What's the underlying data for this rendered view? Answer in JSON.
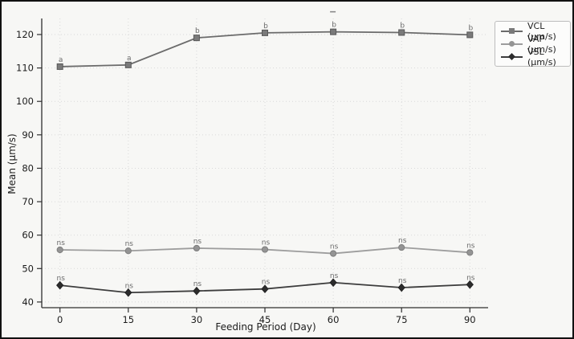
{
  "figure": {
    "background": "#f7f7f5",
    "border_color": "#111111"
  },
  "chart_data": {
    "type": "line",
    "title": "",
    "xlabel": "Feeding Period (Day)",
    "ylabel": "Mean (μm/s)",
    "x": [
      0,
      15,
      30,
      45,
      60,
      75,
      90
    ],
    "y_ticks": [
      40,
      50,
      60,
      70,
      80,
      90,
      100,
      110,
      120
    ],
    "xlim": [
      -4,
      94
    ],
    "ylim": [
      38.3,
      124.8
    ],
    "grid": "dotted-both",
    "legend_position": "upper-right",
    "series": [
      {
        "name": "VCL (μm/s)",
        "marker": "square",
        "line_color": "#6b6b6b",
        "marker_color": "#7a7a7a",
        "marker_edge": "#585858",
        "values": [
          110.4,
          110.9,
          119.0,
          120.5,
          120.8,
          120.6,
          119.9
        ],
        "point_labels": [
          "a",
          "a",
          "b",
          "b",
          "b",
          "b",
          "b"
        ]
      },
      {
        "name": "VAP (μm/s)",
        "marker": "circle",
        "line_color": "#9d9d9d",
        "marker_color": "#949494",
        "marker_edge": "#7d7d7d",
        "values": [
          55.6,
          55.3,
          56.1,
          55.7,
          54.5,
          56.3,
          54.8
        ],
        "point_labels": [
          "ns",
          "ns",
          "ns",
          "ns",
          "ns",
          "ns",
          "ns"
        ]
      },
      {
        "name": "VSL (μm/s)",
        "marker": "diamond",
        "line_color": "#3d3d3d",
        "marker_color": "#2c2c2c",
        "marker_edge": "#222222",
        "values": [
          45.0,
          42.8,
          43.3,
          43.9,
          45.8,
          44.3,
          45.2
        ],
        "point_labels": [
          "ns",
          "ns",
          "ns",
          "ns",
          "ns",
          "ns",
          "ns"
        ]
      }
    ],
    "stray_dash_mark": {
      "day": 60,
      "value": 126.8
    },
    "annotation_color": "#6b6b6b",
    "grid_color": "#d9d9d9",
    "spine_color": "#2f2f2f",
    "tick_label_color": "#1c1c1c"
  }
}
